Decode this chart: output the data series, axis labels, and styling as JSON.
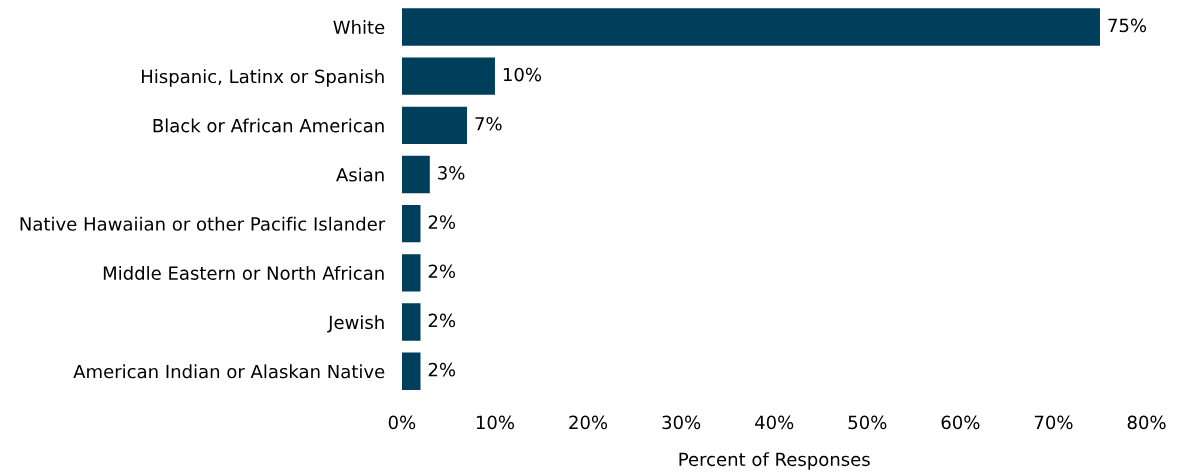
{
  "chart_data": {
    "type": "bar",
    "orientation": "horizontal",
    "xlabel": "Percent of Responses",
    "categories": [
      "White",
      "Hispanic, Latinx or Spanish",
      "Black or African American",
      "Asian",
      "Native Hawaiian or other Pacific Islander",
      "Middle Eastern or North African",
      "Jewish",
      "American Indian or Alaskan Native"
    ],
    "values": [
      75,
      10,
      7,
      3,
      2,
      2,
      2,
      2
    ],
    "value_labels": [
      "75%",
      "10%",
      "7%",
      "3%",
      "2%",
      "2%",
      "2%",
      "2%"
    ],
    "color": "#003f5c",
    "xlim": [
      0,
      80
    ],
    "xticks": [
      {
        "value": 0,
        "label": "0%"
      },
      {
        "value": 10,
        "label": "10%"
      },
      {
        "value": 20,
        "label": "20%"
      },
      {
        "value": 30,
        "label": "30%"
      },
      {
        "value": 40,
        "label": "40%"
      },
      {
        "value": 50,
        "label": "50%"
      },
      {
        "value": 60,
        "label": "60%"
      },
      {
        "value": 70,
        "label": "70%"
      },
      {
        "value": 80,
        "label": "80%"
      }
    ],
    "grid": false
  }
}
